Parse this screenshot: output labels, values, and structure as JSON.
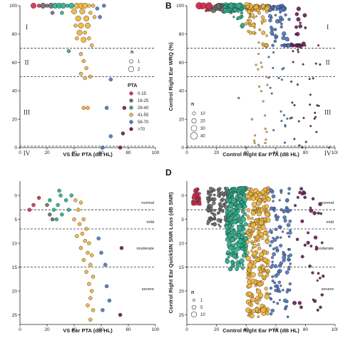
{
  "chart_data": [
    {
      "id": "A",
      "type": "scatter",
      "panel_letter": "",
      "xlabel": "VS Ear PTA (dB HL)",
      "ylabel": "",
      "xlim": [
        0,
        100
      ],
      "ylim": [
        0,
        100
      ],
      "x_ticks": [
        0,
        20,
        40,
        60,
        80,
        100
      ],
      "y_ticks": [
        0,
        20,
        40,
        60,
        80,
        100
      ],
      "y_reversed": false,
      "hlines": [
        70,
        50,
        1
      ],
      "zones": [
        {
          "label": "I",
          "x": 5,
          "y": 85
        },
        {
          "label": "II",
          "x": 5,
          "y": 60
        },
        {
          "label": "III",
          "x": 5,
          "y": 25
        },
        {
          "label": "IV",
          "x": 5,
          "y": -4
        }
      ],
      "legend_size": {
        "title": "n",
        "items": [
          {
            "label": "1",
            "r": 2.5
          },
          {
            "label": "2",
            "r": 3.8
          }
        ]
      },
      "legend_color": {
        "title": "PTA",
        "items": [
          {
            "label": "0-15",
            "color": "#d6304d"
          },
          {
            "label": "16-25",
            "color": "#6e6e6e"
          },
          {
            "label": "26-40",
            "color": "#2fb08c"
          },
          {
            "label": "41-55",
            "color": "#f2b43c"
          },
          {
            "label": "56-70",
            "color": "#4d78c8"
          },
          {
            "label": ">70",
            "color": "#6b1f5c"
          }
        ]
      },
      "points": [
        {
          "x": 10,
          "y": 100,
          "g": 0,
          "r": 3.8
        },
        {
          "x": 14,
          "y": 100,
          "g": 0,
          "r": 2.5
        },
        {
          "x": 17,
          "y": 100,
          "g": 1,
          "r": 3.8
        },
        {
          "x": 20,
          "y": 100,
          "g": 1,
          "r": 2.5
        },
        {
          "x": 23,
          "y": 100,
          "g": 1,
          "r": 3.8
        },
        {
          "x": 26,
          "y": 100,
          "g": 2,
          "r": 3.8
        },
        {
          "x": 29,
          "y": 100,
          "g": 2,
          "r": 3.8
        },
        {
          "x": 32,
          "y": 100,
          "g": 2,
          "r": 3.8
        },
        {
          "x": 35,
          "y": 100,
          "g": 2,
          "r": 2.5
        },
        {
          "x": 38,
          "y": 100,
          "g": 2,
          "r": 3.8
        },
        {
          "x": 24,
          "y": 95,
          "g": 1,
          "r": 2.5
        },
        {
          "x": 31,
          "y": 95,
          "g": 2,
          "r": 2.5
        },
        {
          "x": 42,
          "y": 100,
          "g": 3,
          "r": 3.8
        },
        {
          "x": 45,
          "y": 100,
          "g": 3,
          "r": 3.8
        },
        {
          "x": 48,
          "y": 100,
          "g": 3,
          "r": 3.8
        },
        {
          "x": 51,
          "y": 100,
          "g": 3,
          "r": 2.5
        },
        {
          "x": 54,
          "y": 100,
          "g": 3,
          "r": 2.5
        },
        {
          "x": 40,
          "y": 96,
          "g": 3,
          "r": 3.8
        },
        {
          "x": 46,
          "y": 96,
          "g": 3,
          "r": 3.8
        },
        {
          "x": 52,
          "y": 95,
          "g": 3,
          "r": 2.5
        },
        {
          "x": 43,
          "y": 91,
          "g": 3,
          "r": 3.8
        },
        {
          "x": 49,
          "y": 91,
          "g": 3,
          "r": 3.8
        },
        {
          "x": 55,
          "y": 92,
          "g": 3,
          "r": 2.5
        },
        {
          "x": 41,
          "y": 86,
          "g": 3,
          "r": 2.5
        },
        {
          "x": 45,
          "y": 86,
          "g": 3,
          "r": 3.8
        },
        {
          "x": 50,
          "y": 86,
          "g": 3,
          "r": 3.8
        },
        {
          "x": 44,
          "y": 81,
          "g": 3,
          "r": 3.8
        },
        {
          "x": 48,
          "y": 81,
          "g": 3,
          "r": 2.5
        },
        {
          "x": 42,
          "y": 77,
          "g": 3,
          "r": 2.5
        },
        {
          "x": 47,
          "y": 76,
          "g": 3,
          "r": 3.8
        },
        {
          "x": 51,
          "y": 77,
          "g": 3,
          "r": 2.5
        },
        {
          "x": 53,
          "y": 72,
          "g": 3,
          "r": 2.5
        },
        {
          "x": 57,
          "y": 98,
          "g": 4,
          "r": 2.5
        },
        {
          "x": 62,
          "y": 100,
          "g": 4,
          "r": 2.5
        },
        {
          "x": 59,
          "y": 92,
          "g": 4,
          "r": 2.5
        },
        {
          "x": 36,
          "y": 68,
          "g": 2,
          "r": 2.5
        },
        {
          "x": 45,
          "y": 66,
          "g": 3,
          "r": 2.5
        },
        {
          "x": 47,
          "y": 61,
          "g": 3,
          "r": 2.5
        },
        {
          "x": 49,
          "y": 56,
          "g": 3,
          "r": 2.5
        },
        {
          "x": 45,
          "y": 52,
          "g": 3,
          "r": 2.5
        },
        {
          "x": 48,
          "y": 49,
          "g": 3,
          "r": 2.5
        },
        {
          "x": 52,
          "y": 50,
          "g": 3,
          "r": 2.5
        },
        {
          "x": 67,
          "y": 48,
          "g": 4,
          "r": 2.5
        },
        {
          "x": 47,
          "y": 28,
          "g": 3,
          "r": 2.5
        },
        {
          "x": 50,
          "y": 28,
          "g": 3,
          "r": 2.5
        },
        {
          "x": 64,
          "y": 28,
          "g": 4,
          "r": 2.5
        },
        {
          "x": 77,
          "y": 28,
          "g": 5,
          "r": 2.5
        },
        {
          "x": 67,
          "y": 8,
          "g": 4,
          "r": 2.5
        },
        {
          "x": 76,
          "y": 10,
          "g": 5,
          "r": 2.5
        },
        {
          "x": 61,
          "y": 0,
          "g": 4,
          "r": 2.5
        },
        {
          "x": 74,
          "y": 0,
          "g": 5,
          "r": 2.5
        }
      ]
    },
    {
      "id": "B",
      "type": "scatter",
      "panel_letter": "B",
      "xlabel": "Control Right Ear PTA (dB HL)",
      "ylabel": "Control Right Ear WRQ (%)",
      "xlim": [
        0,
        100
      ],
      "ylim": [
        0,
        100
      ],
      "x_ticks": [
        0,
        20,
        40,
        60,
        80,
        100
      ],
      "y_ticks": [
        0,
        20,
        40,
        60,
        80,
        100
      ],
      "y_reversed": false,
      "hlines": [
        70,
        50,
        1
      ],
      "zones": [
        {
          "label": "I",
          "x": 95,
          "y": 85
        },
        {
          "label": "II",
          "x": 95,
          "y": 60
        },
        {
          "label": "III",
          "x": 95,
          "y": 25
        },
        {
          "label": "IV",
          "x": 95,
          "y": -4
        }
      ],
      "legend_size": {
        "title": "n",
        "items": [
          {
            "label": "10",
            "r": 2.2
          },
          {
            "label": "20",
            "r": 3.2
          },
          {
            "label": "30",
            "r": 4.0
          },
          {
            "label": "40",
            "r": 4.8
          }
        ]
      },
      "gen": "B",
      "points": []
    },
    {
      "id": "C",
      "type": "scatter",
      "panel_letter": "",
      "xlabel": "VS Ear PTA (dB HL)",
      "ylabel": "",
      "xlim": [
        0,
        100
      ],
      "ylim": [
        27,
        -3
      ],
      "x_ticks": [
        0,
        20,
        40,
        60,
        80,
        100
      ],
      "y_ticks": [
        0,
        5,
        10,
        15,
        20,
        25
      ],
      "y_reversed": true,
      "hlines": [
        3,
        7,
        15
      ],
      "zones_right": [
        {
          "label": "normal",
          "y": 1.5
        },
        {
          "label": "mild",
          "y": 5.5
        },
        {
          "label": "moderate",
          "y": 11
        },
        {
          "label": "severe",
          "y": 19.5
        }
      ],
      "points": [
        {
          "x": 7,
          "y": 3,
          "g": 0,
          "r": 2.5
        },
        {
          "x": 10,
          "y": 2,
          "g": 0,
          "r": 2.5
        },
        {
          "x": 14,
          "y": 0.5,
          "g": 0,
          "r": 2.5
        },
        {
          "x": 20,
          "y": 2,
          "g": 1,
          "r": 2.5
        },
        {
          "x": 22,
          "y": 4,
          "g": 1,
          "r": 2.5
        },
        {
          "x": 24,
          "y": 5,
          "g": 1,
          "r": 2.5
        },
        {
          "x": 22,
          "y": 1,
          "g": 2,
          "r": 2.5
        },
        {
          "x": 25,
          "y": 3,
          "g": 2,
          "r": 2.5
        },
        {
          "x": 28,
          "y": 2,
          "g": 2,
          "r": 2.5
        },
        {
          "x": 27,
          "y": 5,
          "g": 2,
          "r": 2.5
        },
        {
          "x": 30,
          "y": 0,
          "g": 2,
          "r": 2.5
        },
        {
          "x": 31,
          "y": 4,
          "g": 2,
          "r": 2.5
        },
        {
          "x": 34,
          "y": 1,
          "g": 2,
          "r": 2.5
        },
        {
          "x": 29,
          "y": -1,
          "g": 2,
          "r": 2.5
        },
        {
          "x": 36,
          "y": 3,
          "g": 2,
          "r": 2.5
        },
        {
          "x": 38,
          "y": 0,
          "g": 2,
          "r": 2.5
        },
        {
          "x": 41,
          "y": 1,
          "g": 3,
          "r": 2.5
        },
        {
          "x": 43,
          "y": 3,
          "g": 3,
          "r": 2.5
        },
        {
          "x": 45,
          "y": 1.5,
          "g": 3,
          "r": 2.5
        },
        {
          "x": 40,
          "y": 5,
          "g": 3,
          "r": 2.5
        },
        {
          "x": 44,
          "y": 6,
          "g": 3,
          "r": 2.5
        },
        {
          "x": 47,
          "y": 5,
          "g": 3,
          "r": 2.5
        },
        {
          "x": 46,
          "y": 8,
          "g": 3,
          "r": 2.5
        },
        {
          "x": 49,
          "y": 7,
          "g": 3,
          "r": 2.5
        },
        {
          "x": 42,
          "y": 8.5,
          "g": 3,
          "r": 2.5
        },
        {
          "x": 48,
          "y": 9.5,
          "g": 3,
          "r": 2.5
        },
        {
          "x": 51,
          "y": 10,
          "g": 3,
          "r": 2.5
        },
        {
          "x": 45,
          "y": 11,
          "g": 3,
          "r": 2.5
        },
        {
          "x": 50,
          "y": 12,
          "g": 3,
          "r": 2.5
        },
        {
          "x": 53,
          "y": 12.5,
          "g": 3,
          "r": 2.5
        },
        {
          "x": 47,
          "y": 13.5,
          "g": 3,
          "r": 2.5
        },
        {
          "x": 52,
          "y": 14.5,
          "g": 3,
          "r": 2.5
        },
        {
          "x": 49,
          "y": 16,
          "g": 3,
          "r": 2.5
        },
        {
          "x": 54,
          "y": 17,
          "g": 3,
          "r": 2.5
        },
        {
          "x": 51,
          "y": 18.5,
          "g": 3,
          "r": 2.5
        },
        {
          "x": 53,
          "y": 20,
          "g": 3,
          "r": 2.5
        },
        {
          "x": 52,
          "y": 21.5,
          "g": 3,
          "r": 2.5
        },
        {
          "x": 50,
          "y": 23,
          "g": 3,
          "r": 2.5
        },
        {
          "x": 54,
          "y": 24,
          "g": 3,
          "r": 2.5
        },
        {
          "x": 52,
          "y": 26,
          "g": 3,
          "r": 2.5
        },
        {
          "x": 58,
          "y": 9,
          "g": 4,
          "r": 2.5
        },
        {
          "x": 60,
          "y": 12,
          "g": 4,
          "r": 2.5
        },
        {
          "x": 63,
          "y": 14.5,
          "g": 4,
          "r": 2.5
        },
        {
          "x": 64,
          "y": 19,
          "g": 4,
          "r": 2.5
        },
        {
          "x": 66,
          "y": 22,
          "g": 4,
          "r": 2.5
        },
        {
          "x": 61,
          "y": 24,
          "g": 4,
          "r": 2.5
        },
        {
          "x": 75,
          "y": 11,
          "g": 5,
          "r": 2.5
        },
        {
          "x": 74,
          "y": 25,
          "g": 5,
          "r": 2.5
        }
      ]
    },
    {
      "id": "D",
      "type": "scatter",
      "panel_letter": "D",
      "xlabel": "Control Right Ear PTA (dB HL)",
      "ylabel": "Control Right Ear QuickSIN SNR Loss (dB SNR)",
      "xlim": [
        0,
        100
      ],
      "ylim": [
        27,
        -3
      ],
      "x_ticks": [
        0,
        20,
        40,
        60,
        80,
        100
      ],
      "y_ticks": [
        0,
        5,
        10,
        15,
        20,
        25
      ],
      "y_reversed": true,
      "hlines": [
        3,
        7,
        15
      ],
      "zones_right": [
        {
          "label": "normal",
          "y": 1.5
        },
        {
          "label": "mild",
          "y": 5.5
        },
        {
          "label": "moderate",
          "y": 11
        },
        {
          "label": "severe",
          "y": 19.5
        }
      ],
      "legend_size": {
        "title": "n",
        "items": [
          {
            "label": "1",
            "r": 1.6
          },
          {
            "label": "5",
            "r": 2.8
          },
          {
            "label": "10",
            "r": 3.8
          }
        ]
      },
      "gen": "D",
      "points": []
    }
  ],
  "colors": [
    "#d6304d",
    "#6e6e6e",
    "#2fb08c",
    "#f2b43c",
    "#4d78c8",
    "#6b1f5c"
  ]
}
